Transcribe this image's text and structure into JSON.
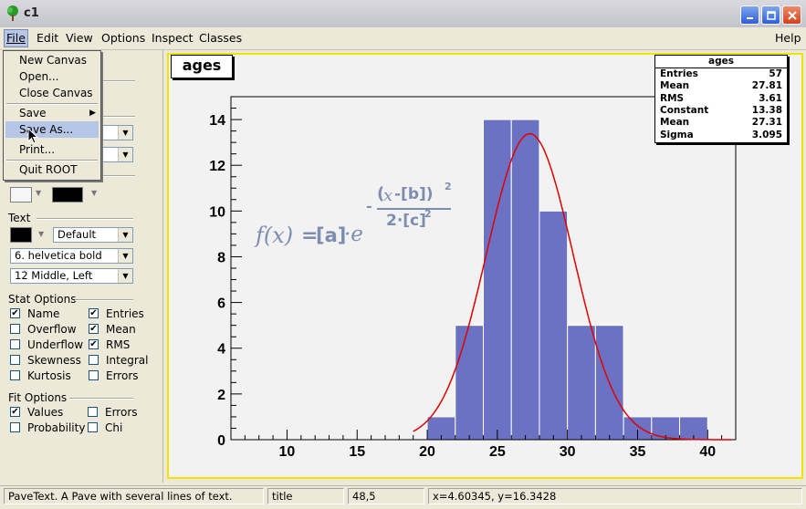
{
  "window": {
    "title": "c1"
  },
  "menubar": {
    "items": [
      {
        "key": "file",
        "label": "File"
      },
      {
        "key": "edit",
        "label": "Edit"
      },
      {
        "key": "view",
        "label": "View"
      },
      {
        "key": "options",
        "label": "Options"
      },
      {
        "key": "inspect",
        "label": "Inspect"
      },
      {
        "key": "classes",
        "label": "Classes"
      }
    ],
    "help": "Help"
  },
  "file_menu": {
    "items": [
      "New Canvas",
      "Open...",
      "Close Canvas",
      "Save",
      "Save As...",
      "Print...",
      "Quit ROOT"
    ],
    "highlighted": "Save As..."
  },
  "editor": {
    "line_width": "",
    "text_section": "Text",
    "text_align_default": "Default",
    "font": "6. helvetica bold",
    "alignment": "12 Middle, Left",
    "stat_options": {
      "title": "Stat Options",
      "left": [
        {
          "label": "Name",
          "checked": true
        },
        {
          "label": "Overflow",
          "checked": false
        },
        {
          "label": "Underflow",
          "checked": false
        },
        {
          "label": "Skewness",
          "checked": false
        },
        {
          "label": "Kurtosis",
          "checked": false
        }
      ],
      "right": [
        {
          "label": "Entries",
          "checked": true
        },
        {
          "label": "Mean",
          "checked": true
        },
        {
          "label": "RMS",
          "checked": true
        },
        {
          "label": "Integral",
          "checked": false
        },
        {
          "label": "Errors",
          "checked": false
        }
      ]
    },
    "fit_options": {
      "title": "Fit Options",
      "left": [
        {
          "label": "Values",
          "checked": true
        },
        {
          "label": "Probability",
          "checked": false
        }
      ],
      "right": [
        {
          "label": "Errors",
          "checked": false
        },
        {
          "label": "Chi",
          "checked": false
        }
      ]
    }
  },
  "stats_box": {
    "title": "ages",
    "rows": [
      {
        "label": "Entries",
        "value": "57"
      },
      {
        "label": "Mean",
        "value": "27.81"
      },
      {
        "label": "RMS",
        "value": "3.61"
      },
      {
        "label": "Constant",
        "value": "13.38"
      },
      {
        "label": "Mean",
        "value": "27.31"
      },
      {
        "label": "Sigma",
        "value": "3.095"
      }
    ]
  },
  "formula": {
    "fx": "f(x)",
    "eq": "=",
    "a": "[a]",
    "dot": "·e",
    "minus": "-",
    "num_x": "x",
    "num_rest": "-[b])",
    "num_open": "(",
    "num_exp": "2",
    "den": "2·[c]",
    "den_exp": "2"
  },
  "chart_data": {
    "type": "bar",
    "title": "ages",
    "bin_edges": [
      6,
      8,
      10,
      12,
      14,
      16,
      18,
      20,
      22,
      24,
      26,
      28,
      30,
      32,
      34,
      36,
      38,
      40,
      42
    ],
    "values": [
      0,
      0,
      0,
      0,
      0,
      0,
      0,
      1,
      5,
      14,
      14,
      10,
      5,
      5,
      1,
      1,
      1,
      0
    ],
    "xlim": [
      6,
      42
    ],
    "ylim": [
      0,
      15
    ],
    "xticks": [
      10,
      15,
      20,
      25,
      30,
      35,
      40
    ],
    "yticks": [
      0,
      2,
      4,
      6,
      8,
      10,
      12,
      14
    ],
    "fit": {
      "type": "gaus",
      "constant": 13.38,
      "mean": 27.31,
      "sigma": 3.095
    },
    "bar_color": "#6b72c4",
    "fit_color": "#e00000"
  },
  "statusbar": {
    "object_info": "PaveText. A Pave with several lines of text.",
    "object_name": "title",
    "pixel": "48,5",
    "coords": "x=4.60345, y=16.3428"
  }
}
